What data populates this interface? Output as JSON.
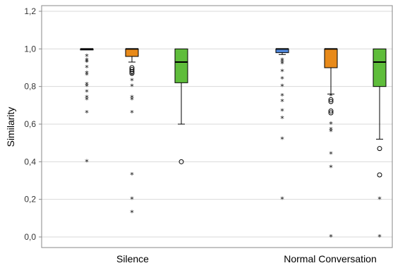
{
  "chart_data": {
    "type": "boxplot",
    "ylabel": "Similarity",
    "xlabel": "",
    "ylim": [
      0,
      1.2
    ],
    "yticks": [
      0.0,
      0.2,
      0.4,
      0.6,
      0.8,
      1.0,
      1.2
    ],
    "yticklabels": [
      "0,0",
      "0,2",
      "0,4",
      "0,6",
      "0,8",
      "1,0",
      "1,2"
    ],
    "grid": true,
    "categories": [
      "Silence",
      "Normal Conversation"
    ],
    "series_colors": [
      "#4f86d8",
      "#e88a1a",
      "#5fbd3b"
    ],
    "boxes": [
      {
        "category": "Silence",
        "series_index": 0,
        "q1": 1.0,
        "median": 1.0,
        "q3": 1.0,
        "whisker_low": 1.0,
        "whisker_high": 1.0,
        "outliers": [],
        "extremes": [
          0.96,
          0.94,
          0.93,
          0.93,
          0.9,
          0.87,
          0.86,
          0.81,
          0.8,
          0.77,
          0.74,
          0.73,
          0.66,
          0.4
        ]
      },
      {
        "category": "Silence",
        "series_index": 1,
        "q1": 0.96,
        "median": 1.0,
        "q3": 1.0,
        "whisker_low": 0.93,
        "whisker_high": 1.0,
        "outliers": [
          0.9,
          0.89,
          0.88,
          0.87
        ],
        "extremes": [
          0.86,
          0.83,
          0.8,
          0.74,
          0.73,
          0.66,
          0.33,
          0.2,
          0.13
        ]
      },
      {
        "category": "Silence",
        "series_index": 2,
        "q1": 0.82,
        "median": 0.93,
        "q3": 1.0,
        "whisker_low": 0.6,
        "whisker_high": 1.0,
        "outliers": [
          0.4
        ],
        "extremes": []
      },
      {
        "category": "Normal Conversation",
        "series_index": 0,
        "q1": 0.98,
        "median": 1.0,
        "q3": 1.0,
        "whisker_low": 0.97,
        "whisker_high": 1.0,
        "outliers": [],
        "extremes": [
          0.94,
          0.93,
          0.92,
          0.88,
          0.84,
          0.8,
          0.75,
          0.72,
          0.67,
          0.63,
          0.52,
          0.2
        ]
      },
      {
        "category": "Normal Conversation",
        "series_index": 1,
        "q1": 0.9,
        "median": 1.0,
        "q3": 1.0,
        "whisker_low": 0.76,
        "whisker_high": 1.0,
        "outliers": [
          0.73,
          0.72,
          0.67,
          0.66
        ],
        "extremes": [
          0.75,
          0.6,
          0.57,
          0.56,
          0.44,
          0.37,
          0.0
        ]
      },
      {
        "category": "Normal Conversation",
        "series_index": 2,
        "q1": 0.8,
        "median": 0.93,
        "q3": 1.0,
        "whisker_low": 0.52,
        "whisker_high": 1.0,
        "outliers": [
          0.47,
          0.33
        ],
        "extremes": [
          0.2,
          0.0
        ]
      }
    ]
  }
}
